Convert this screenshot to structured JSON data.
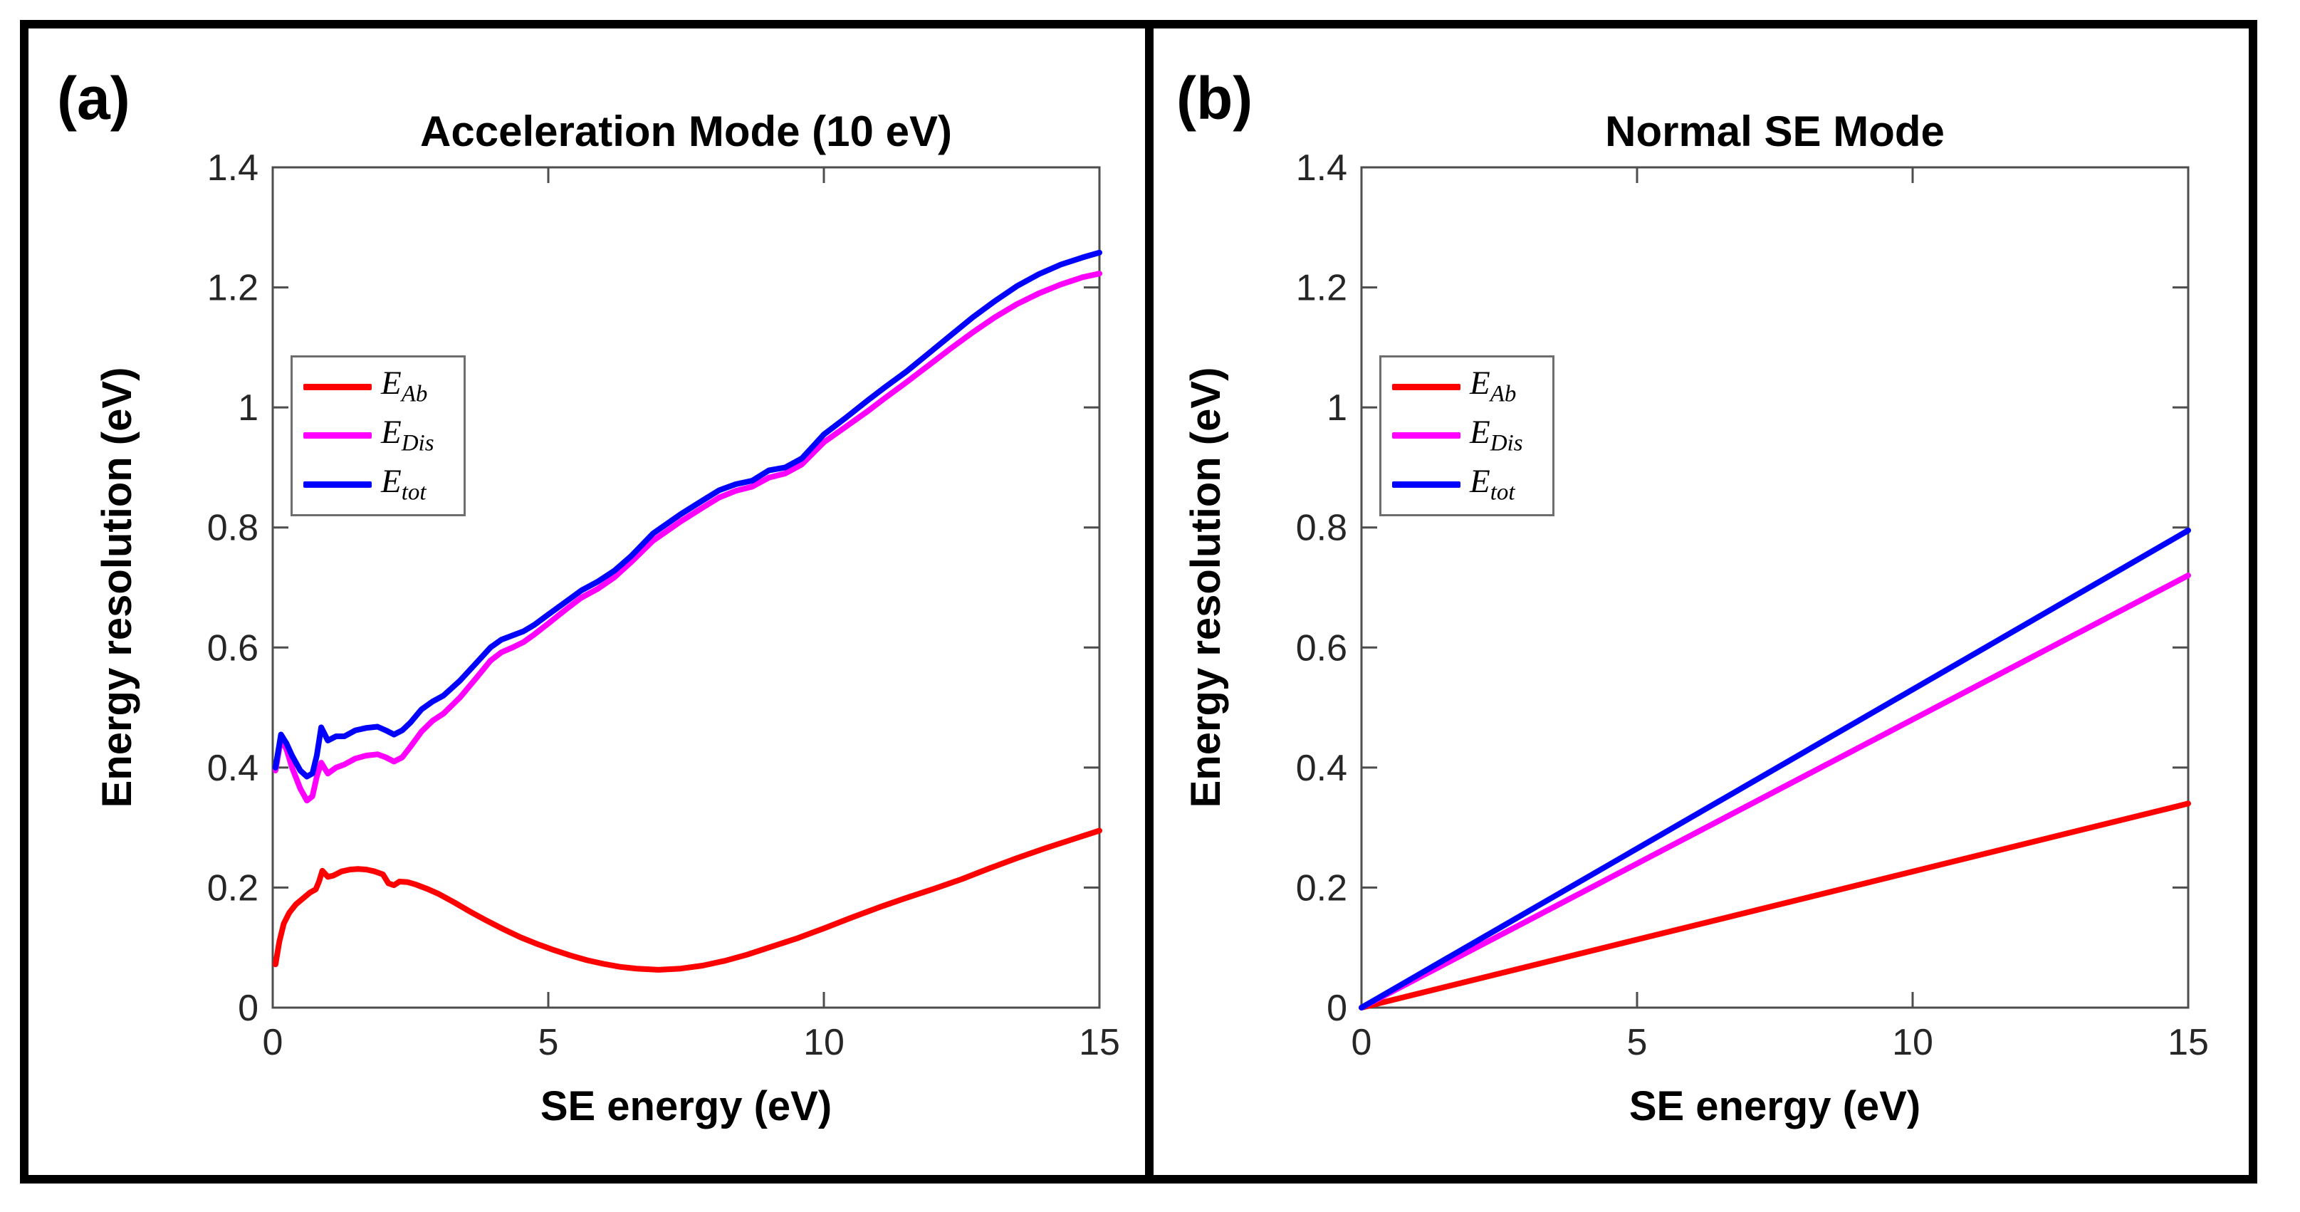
{
  "chart_data": [
    {
      "type": "line",
      "corner_label": "(a)",
      "title": "Acceleration Mode (10 eV)",
      "xlabel": "SE energy (eV)",
      "ylabel": "Energy resolution (eV)",
      "xlim": [
        0,
        15
      ],
      "ylim": [
        0,
        1.4
      ],
      "grid": false,
      "legend_position": "top-left",
      "x_tick_values": [
        0,
        5,
        10,
        15
      ],
      "x_tick_labels": [
        "0",
        "5",
        "10",
        "15"
      ],
      "y_tick_values": [
        0,
        0.2,
        0.4,
        0.6,
        0.8,
        1,
        1.2,
        1.4
      ],
      "y_tick_labels": [
        "0",
        "0.2",
        "0.4",
        "0.6",
        "0.8",
        "1",
        "1.2",
        "1.4"
      ],
      "axis_color": "#4d4d4d",
      "tick_label_color": "#262626",
      "series": [
        {
          "name": "E_Ab",
          "name_main": "E",
          "name_sub": "Ab",
          "color": "#ff0000",
          "x": [
            0.05,
            0.12,
            0.2,
            0.3,
            0.42,
            0.55,
            0.68,
            0.78,
            0.84,
            0.9,
            1.0,
            1.1,
            1.25,
            1.4,
            1.55,
            1.7,
            1.85,
            2.0,
            2.1,
            2.2,
            2.3,
            2.45,
            2.6,
            2.8,
            3.0,
            3.3,
            3.6,
            3.9,
            4.2,
            4.5,
            4.8,
            5.1,
            5.4,
            5.7,
            6.0,
            6.3,
            6.6,
            7.0,
            7.4,
            7.8,
            8.2,
            8.6,
            9.0,
            9.5,
            10.0,
            10.5,
            11.0,
            11.5,
            12.0,
            12.5,
            13.0,
            13.5,
            14.0,
            14.5,
            15.0
          ],
          "y": [
            0.072,
            0.11,
            0.14,
            0.158,
            0.172,
            0.182,
            0.192,
            0.197,
            0.21,
            0.228,
            0.218,
            0.22,
            0.227,
            0.23,
            0.231,
            0.23,
            0.227,
            0.222,
            0.207,
            0.204,
            0.21,
            0.209,
            0.205,
            0.198,
            0.19,
            0.175,
            0.159,
            0.144,
            0.13,
            0.117,
            0.106,
            0.096,
            0.087,
            0.079,
            0.073,
            0.068,
            0.065,
            0.063,
            0.065,
            0.07,
            0.078,
            0.088,
            0.1,
            0.115,
            0.132,
            0.15,
            0.167,
            0.183,
            0.198,
            0.214,
            0.232,
            0.249,
            0.265,
            0.28,
            0.295
          ]
        },
        {
          "name": "E_Dis",
          "name_main": "E",
          "name_sub": "Dis",
          "color": "#ff00ff",
          "x": [
            0.05,
            0.15,
            0.25,
            0.35,
            0.5,
            0.62,
            0.72,
            0.8,
            0.88,
            1.0,
            1.15,
            1.3,
            1.5,
            1.7,
            1.9,
            2.05,
            2.2,
            2.35,
            2.5,
            2.7,
            2.9,
            3.1,
            3.4,
            3.7,
            3.95,
            4.15,
            4.35,
            4.55,
            4.75,
            5.0,
            5.3,
            5.6,
            5.9,
            6.2,
            6.5,
            6.9,
            7.4,
            7.8,
            8.1,
            8.4,
            8.7,
            9.0,
            9.3,
            9.6,
            10.0,
            10.4,
            10.8,
            11.1,
            11.5,
            11.9,
            12.3,
            12.7,
            13.1,
            13.5,
            13.9,
            14.3,
            14.7,
            15.0
          ],
          "y": [
            0.395,
            0.448,
            0.43,
            0.4,
            0.365,
            0.345,
            0.352,
            0.385,
            0.408,
            0.39,
            0.4,
            0.405,
            0.415,
            0.42,
            0.422,
            0.417,
            0.41,
            0.417,
            0.435,
            0.46,
            0.478,
            0.49,
            0.517,
            0.55,
            0.578,
            0.592,
            0.6,
            0.609,
            0.622,
            0.64,
            0.662,
            0.683,
            0.698,
            0.717,
            0.742,
            0.778,
            0.81,
            0.833,
            0.85,
            0.861,
            0.868,
            0.883,
            0.89,
            0.905,
            0.942,
            0.968,
            0.994,
            1.015,
            1.042,
            1.07,
            1.098,
            1.125,
            1.15,
            1.172,
            1.19,
            1.205,
            1.217,
            1.223
          ]
        },
        {
          "name": "E_tot",
          "name_main": "E",
          "name_sub": "tot",
          "color": "#0000ff",
          "x": [
            0.05,
            0.15,
            0.25,
            0.35,
            0.5,
            0.62,
            0.72,
            0.8,
            0.88,
            1.0,
            1.15,
            1.3,
            1.5,
            1.7,
            1.9,
            2.05,
            2.2,
            2.35,
            2.5,
            2.7,
            2.9,
            3.1,
            3.4,
            3.7,
            3.95,
            4.15,
            4.35,
            4.55,
            4.75,
            5.0,
            5.3,
            5.6,
            5.9,
            6.2,
            6.5,
            6.9,
            7.4,
            7.8,
            8.1,
            8.4,
            8.7,
            9.0,
            9.3,
            9.6,
            10.0,
            10.4,
            10.8,
            11.1,
            11.5,
            11.9,
            12.3,
            12.7,
            13.1,
            13.5,
            13.9,
            14.3,
            14.7,
            15.0
          ],
          "y": [
            0.4,
            0.455,
            0.44,
            0.42,
            0.395,
            0.385,
            0.39,
            0.42,
            0.467,
            0.445,
            0.452,
            0.452,
            0.462,
            0.466,
            0.468,
            0.462,
            0.455,
            0.462,
            0.475,
            0.497,
            0.51,
            0.52,
            0.545,
            0.575,
            0.6,
            0.613,
            0.62,
            0.627,
            0.638,
            0.655,
            0.675,
            0.695,
            0.71,
            0.728,
            0.752,
            0.79,
            0.822,
            0.845,
            0.862,
            0.872,
            0.878,
            0.895,
            0.9,
            0.915,
            0.955,
            0.983,
            1.012,
            1.033,
            1.06,
            1.09,
            1.12,
            1.15,
            1.177,
            1.202,
            1.222,
            1.238,
            1.25,
            1.258
          ]
        }
      ]
    },
    {
      "type": "line",
      "corner_label": "(b)",
      "title": "Normal SE Mode",
      "xlabel": "SE energy (eV)",
      "ylabel": "Energy resolution (eV)",
      "xlim": [
        0,
        15
      ],
      "ylim": [
        0,
        1.4
      ],
      "grid": false,
      "legend_position": "top-left",
      "x_tick_values": [
        0,
        5,
        10,
        15
      ],
      "x_tick_labels": [
        "0",
        "5",
        "10",
        "15"
      ],
      "y_tick_values": [
        0,
        0.2,
        0.4,
        0.6,
        0.8,
        1,
        1.2,
        1.4
      ],
      "y_tick_labels": [
        "0",
        "0.2",
        "0.4",
        "0.6",
        "0.8",
        "1",
        "1.2",
        "1.4"
      ],
      "axis_color": "#4d4d4d",
      "tick_label_color": "#262626",
      "series": [
        {
          "name": "E_Ab",
          "name_main": "E",
          "name_sub": "Ab",
          "color": "#ff0000",
          "x": [
            0,
            15
          ],
          "y": [
            0,
            0.34
          ]
        },
        {
          "name": "E_Dis",
          "name_main": "E",
          "name_sub": "Dis",
          "color": "#ff00ff",
          "x": [
            0,
            15
          ],
          "y": [
            0,
            0.72
          ]
        },
        {
          "name": "E_tot",
          "name_main": "E",
          "name_sub": "tot",
          "color": "#0000ff",
          "x": [
            0,
            15
          ],
          "y": [
            0,
            0.795
          ]
        }
      ]
    }
  ]
}
